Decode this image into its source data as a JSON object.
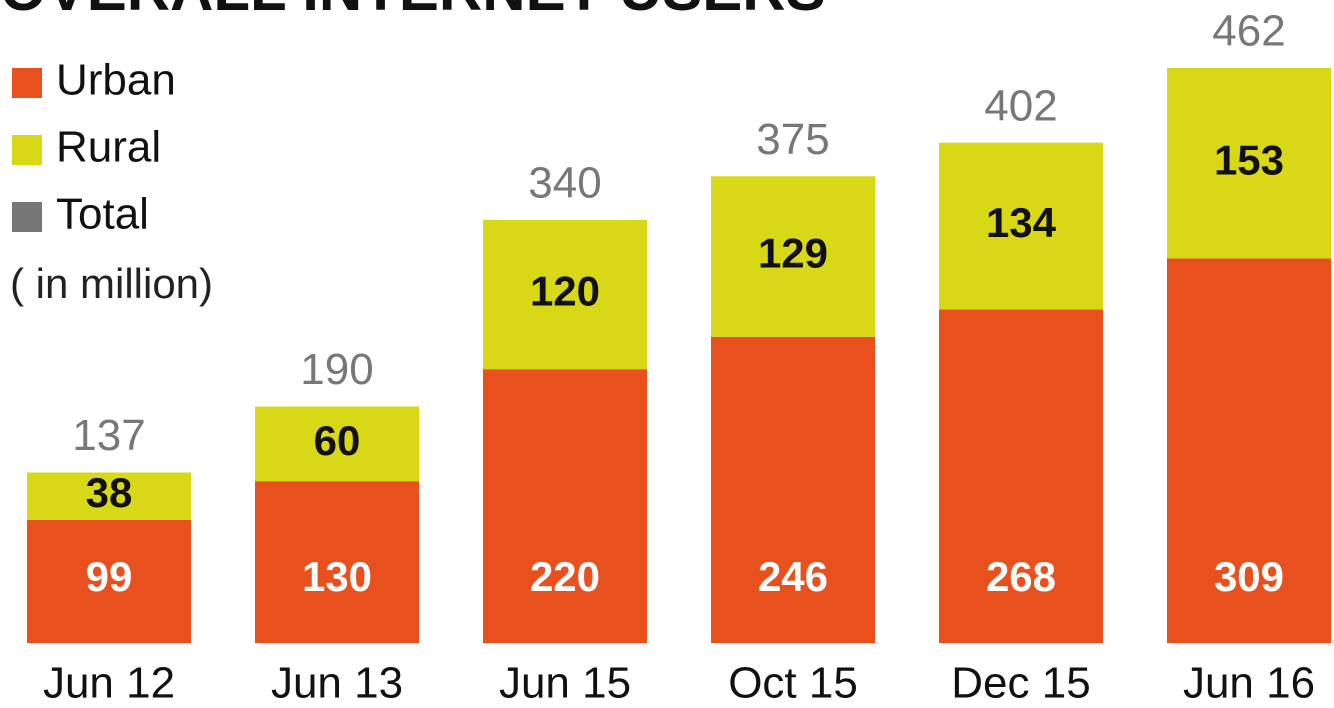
{
  "chart_data": {
    "type": "bar",
    "stacked": true,
    "title": "OVERALL INTERNET USERS",
    "note": "( in million)",
    "categories": [
      "Jun 12",
      "Jun 13",
      "Jun 15",
      "Oct 15",
      "Dec 15",
      "Jun 16"
    ],
    "series": [
      {
        "name": "Urban",
        "color": "#e8501e",
        "values": [
          99,
          130,
          220,
          246,
          268,
          309
        ]
      },
      {
        "name": "Rural",
        "color": "#d9d816",
        "values": [
          38,
          60,
          120,
          129,
          134,
          153
        ]
      }
    ],
    "totals": {
      "name": "Total",
      "color": "#777777",
      "values": [
        137,
        190,
        340,
        375,
        402,
        462
      ]
    }
  }
}
